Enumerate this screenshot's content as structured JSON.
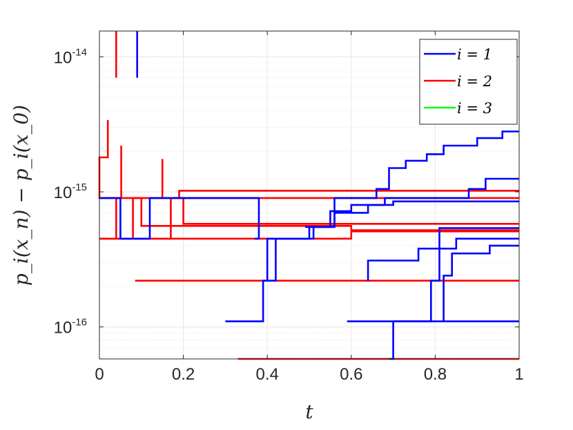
{
  "chart_data": {
    "type": "line",
    "title": "",
    "xlabel": "t",
    "ylabel": "p_i(x_n) − p_i(x_0)",
    "xlim": [
      0,
      1
    ],
    "ylim": [
      5.8e-17,
      1.55e-14
    ],
    "yscale": "log",
    "grid": true,
    "minor_grid": true,
    "legend_position": "top-right",
    "x_ticks": [
      "0",
      "0.2",
      "0.4",
      "0.6",
      "0.8",
      "1"
    ],
    "y_ticks": [
      {
        "base": "10",
        "exp": "-14",
        "value": 1e-14
      },
      {
        "base": "10",
        "exp": "-15",
        "value": 1e-15
      },
      {
        "base": "10",
        "exp": "-16",
        "value": 1e-16
      }
    ],
    "colors": {
      "i=1": "#0000ff",
      "i=2": "#ff0000",
      "i=3": "#00ff00"
    },
    "legend": [
      {
        "label": "i = 1",
        "color": "#0000ff"
      },
      {
        "label": "i = 2",
        "color": "#ff0000"
      },
      {
        "label": "i = 3",
        "color": "#00ff00"
      }
    ],
    "series": [
      {
        "color": "#ff0000",
        "points": [
          [
            0.02,
            3.4e-15
          ],
          [
            0.02,
            1.8e-15
          ],
          [
            0.0,
            1.8e-15
          ],
          [
            0.0,
            9e-16
          ],
          [
            0.052,
            9e-16
          ],
          [
            0.052,
            2.2e-15
          ]
        ]
      },
      {
        "color": "#ff0000",
        "points": [
          [
            0.0,
            4.5e-16
          ],
          [
            0.17,
            4.5e-16
          ],
          [
            0.17,
            9e-16
          ],
          [
            1.0,
            9e-16
          ]
        ]
      },
      {
        "color": "#ff0000",
        "points": [
          [
            0.04,
            7e-15
          ],
          [
            0.04,
            1.55e-14
          ]
        ]
      },
      {
        "color": "#ff0000",
        "points": [
          [
            0.04,
            4.5e-16
          ],
          [
            0.04,
            9e-16
          ],
          [
            0.1,
            9e-16
          ],
          [
            0.1,
            5.6e-16
          ],
          [
            0.6,
            5.6e-16
          ],
          [
            0.6,
            5.2e-16
          ],
          [
            1.0,
            5.2e-16
          ]
        ]
      },
      {
        "color": "#ff0000",
        "points": [
          [
            0.08,
            4.5e-16
          ],
          [
            0.08,
            9e-16
          ],
          [
            0.15,
            9e-16
          ],
          [
            0.15,
            1.75e-15
          ]
        ]
      },
      {
        "color": "#ff0000",
        "points": [
          [
            0.15,
            9e-16
          ],
          [
            0.19,
            9e-16
          ],
          [
            0.19,
            1.02e-15
          ],
          [
            1.0,
            1.02e-15
          ]
        ]
      },
      {
        "color": "#ff0000",
        "points": [
          [
            0.19,
            9e-16
          ],
          [
            0.2,
            9e-16
          ],
          [
            0.2,
            5.8e-16
          ],
          [
            1.0,
            5.8e-16
          ]
        ]
      },
      {
        "color": "#ff0000",
        "points": [
          [
            0.0,
            4.5e-16
          ],
          [
            0.6,
            4.5e-16
          ],
          [
            0.6,
            5.1e-16
          ],
          [
            1.0,
            5.1e-16
          ]
        ]
      },
      {
        "color": "#ff0000",
        "points": [
          [
            0.085,
            2.2e-16
          ],
          [
            1.0,
            2.2e-16
          ]
        ]
      },
      {
        "color": "#ff0000",
        "points": [
          [
            0.33,
            5.8e-17
          ],
          [
            1.0,
            5.8e-17
          ]
        ]
      },
      {
        "color": "#0000ff",
        "points": [
          [
            0.09,
            7e-15
          ],
          [
            0.09,
            1.55e-14
          ]
        ]
      },
      {
        "color": "#0000ff",
        "points": [
          [
            0.0,
            9e-16
          ],
          [
            0.05,
            9e-16
          ],
          [
            0.05,
            4.5e-16
          ],
          [
            0.12,
            4.5e-16
          ],
          [
            0.12,
            9e-16
          ],
          [
            0.38,
            9e-16
          ],
          [
            0.38,
            4.5e-16
          ],
          [
            0.37,
            4.5e-16
          ]
        ]
      },
      {
        "color": "#0000ff",
        "points": [
          [
            0.3,
            1.1e-16
          ],
          [
            0.39,
            1.1e-16
          ],
          [
            0.39,
            2.2e-16
          ],
          [
            0.42,
            2.2e-16
          ],
          [
            0.42,
            4.5e-16
          ],
          [
            0.5,
            4.5e-16
          ],
          [
            0.5,
            5.5e-16
          ],
          [
            0.56,
            5.5e-16
          ],
          [
            0.56,
            7e-16
          ],
          [
            0.64,
            7e-16
          ],
          [
            0.64,
            8e-16
          ],
          [
            0.7,
            8e-16
          ],
          [
            0.7,
            8.5e-16
          ],
          [
            1.0,
            8.5e-16
          ]
        ]
      },
      {
        "color": "#0000ff",
        "points": [
          [
            0.4,
            2.2e-16
          ],
          [
            0.4,
            4.5e-16
          ],
          [
            0.51,
            4.5e-16
          ],
          [
            0.51,
            5.5e-16
          ],
          [
            0.56,
            5.5e-16
          ],
          [
            0.56,
            9e-16
          ],
          [
            0.66,
            9e-16
          ],
          [
            0.66,
            1.05e-15
          ],
          [
            0.69,
            1.05e-15
          ],
          [
            0.69,
            1.5e-15
          ],
          [
            0.73,
            1.5e-15
          ],
          [
            0.73,
            1.7e-15
          ],
          [
            0.78,
            1.7e-15
          ],
          [
            0.78,
            1.9e-15
          ],
          [
            0.82,
            1.9e-15
          ],
          [
            0.82,
            2.2e-15
          ],
          [
            0.9,
            2.2e-15
          ],
          [
            0.9,
            2.5e-15
          ],
          [
            0.96,
            2.5e-15
          ],
          [
            0.96,
            2.8e-15
          ],
          [
            1.0,
            2.8e-15
          ]
        ]
      },
      {
        "color": "#0000ff",
        "points": [
          [
            0.49,
            5.5e-16
          ],
          [
            0.55,
            5.5e-16
          ],
          [
            0.55,
            7.2e-16
          ],
          [
            0.6,
            7.2e-16
          ],
          [
            0.6,
            8e-16
          ],
          [
            0.68,
            8e-16
          ],
          [
            0.68,
            9e-16
          ],
          [
            0.88,
            9e-16
          ],
          [
            0.88,
            1.05e-15
          ],
          [
            0.92,
            1.05e-15
          ],
          [
            0.92,
            1.25e-15
          ],
          [
            1.0,
            1.25e-15
          ]
        ]
      },
      {
        "color": "#0000ff",
        "points": [
          [
            0.59,
            1.1e-16
          ],
          [
            0.79,
            1.1e-16
          ],
          [
            0.79,
            2.2e-16
          ],
          [
            0.81,
            2.2e-16
          ],
          [
            0.81,
            5.4e-16
          ],
          [
            1.0,
            5.4e-16
          ]
        ]
      },
      {
        "color": "#0000ff",
        "points": [
          [
            0.64,
            2.2e-16
          ],
          [
            0.64,
            3.1e-16
          ],
          [
            0.76,
            3.1e-16
          ],
          [
            0.76,
            3.8e-16
          ],
          [
            0.85,
            3.8e-16
          ],
          [
            0.85,
            4.5e-16
          ],
          [
            1.0,
            4.5e-16
          ]
        ]
      },
      {
        "color": "#0000ff",
        "points": [
          [
            0.82,
            1.1e-16
          ],
          [
            0.82,
            2.4e-16
          ],
          [
            0.84,
            2.4e-16
          ],
          [
            0.84,
            3.5e-16
          ],
          [
            0.93,
            3.5e-16
          ],
          [
            0.93,
            4e-16
          ],
          [
            1.0,
            4e-16
          ]
        ]
      },
      {
        "color": "#0000ff",
        "points": [
          [
            0.7,
            1.1e-16
          ],
          [
            1.0,
            1.1e-16
          ]
        ]
      },
      {
        "color": "#0000ff",
        "points": [
          [
            0.69,
            5.8e-17
          ],
          [
            0.7,
            5.8e-17
          ],
          [
            0.7,
            1.1e-16
          ]
        ]
      }
    ]
  }
}
